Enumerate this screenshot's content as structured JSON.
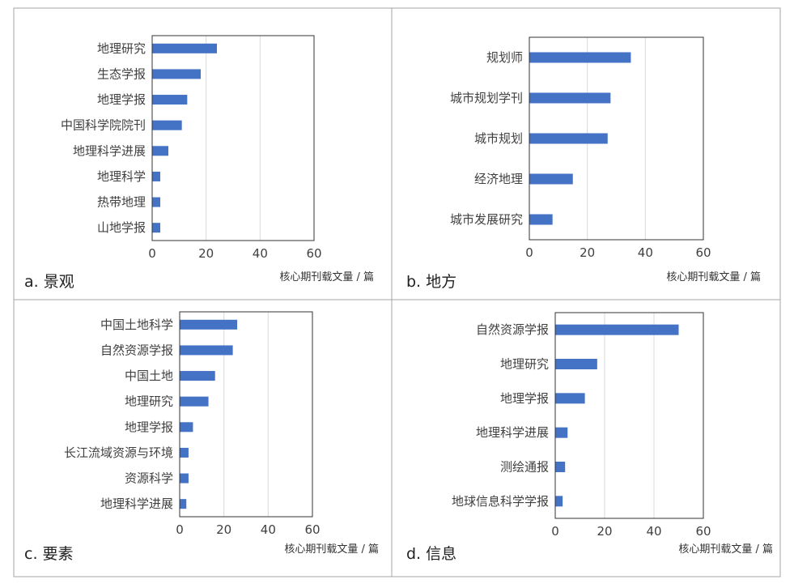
{
  "chart_data": [
    {
      "type": "bar",
      "orientation": "horizontal",
      "panel_label": "a. 景观",
      "xlabel": "核心期刊载文量 / 篇",
      "xlim": [
        0,
        60
      ],
      "xticks": [
        0,
        20,
        40,
        60
      ],
      "grid": "vertical",
      "categories": [
        "地理研究",
        "生态学报",
        "地理学报",
        "中国科学院院刊",
        "地理科学进展",
        "地理科学",
        "热带地理",
        "山地学报"
      ],
      "values": [
        24,
        18,
        13,
        11,
        6,
        3,
        3,
        3
      ]
    },
    {
      "type": "bar",
      "orientation": "horizontal",
      "panel_label": "b. 地方",
      "xlabel": "核心期刊载文量 / 篇",
      "xlim": [
        0,
        60
      ],
      "xticks": [
        0,
        20,
        40,
        60
      ],
      "grid": "vertical",
      "categories": [
        "规划师",
        "城市规划学刊",
        "城市规划",
        "经济地理",
        "城市发展研究"
      ],
      "values": [
        35,
        28,
        27,
        15,
        8
      ]
    },
    {
      "type": "bar",
      "orientation": "horizontal",
      "panel_label": "c. 要素",
      "xlabel": "核心期刊载文量 / 篇",
      "xlim": [
        0,
        60
      ],
      "xticks": [
        0,
        20,
        40,
        60
      ],
      "grid": "vertical",
      "categories": [
        "中国土地科学",
        "自然资源学报",
        "中国土地",
        "地理研究",
        "地理学报",
        "长江流域资源与环境",
        "资源科学",
        "地理科学进展"
      ],
      "values": [
        26,
        24,
        16,
        13,
        6,
        4,
        4,
        3
      ]
    },
    {
      "type": "bar",
      "orientation": "horizontal",
      "panel_label": "d. 信息",
      "xlabel": "核心期刊载文量 / 篇",
      "xlim": [
        0,
        60
      ],
      "xticks": [
        0,
        20,
        40,
        60
      ],
      "grid": "vertical",
      "categories": [
        "自然资源学报",
        "地理研究",
        "地理学报",
        "地理科学进展",
        "测绘通报",
        "地球信息科学学报"
      ],
      "values": [
        50,
        17,
        12,
        5,
        4,
        3
      ]
    }
  ],
  "colors": {
    "bar": "#4472c4",
    "grid": "#d9d9d9",
    "axis": "#333333",
    "border": "#a6a6a6"
  }
}
